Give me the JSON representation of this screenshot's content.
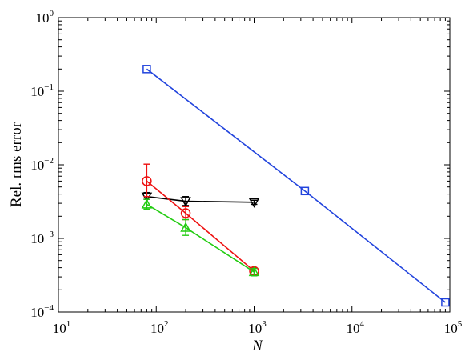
{
  "chart_data": {
    "type": "scatter",
    "title": "",
    "xlabel": "N",
    "ylabel": "Rel. rms error",
    "xscale": "log",
    "yscale": "log",
    "xlim": [
      10,
      100000
    ],
    "ylim": [
      0.0001,
      1
    ],
    "grid": false,
    "x_ticks": [
      {
        "base": "10",
        "exp": "1",
        "value": 10
      },
      {
        "base": "10",
        "exp": "2",
        "value": 100
      },
      {
        "base": "10",
        "exp": "3",
        "value": 1000
      },
      {
        "base": "10",
        "exp": "4",
        "value": 10000
      },
      {
        "base": "10",
        "exp": "5",
        "value": 100000
      }
    ],
    "y_ticks": [
      {
        "base": "10",
        "exp": "0",
        "value": 1
      },
      {
        "base": "10",
        "exp": "−1",
        "value": 0.1
      },
      {
        "base": "10",
        "exp": "−2",
        "value": 0.01
      },
      {
        "base": "10",
        "exp": "−3",
        "value": 0.001
      },
      {
        "base": "10",
        "exp": "−4",
        "value": 0.0001
      }
    ],
    "series": [
      {
        "marker": "square",
        "color": "#2244dd",
        "x": [
          80,
          3300,
          90000
        ],
        "y": [
          0.2,
          0.0044,
          0.000135
        ],
        "err_low": [
          null,
          null,
          null
        ],
        "err_high": [
          null,
          null,
          null
        ]
      },
      {
        "marker": "triangle-down",
        "color": "#000000",
        "x": [
          80,
          200,
          1000
        ],
        "y": [
          0.0037,
          0.0032,
          0.0031
        ],
        "err_low": [
          0.0034,
          0.0028,
          0.0029
        ],
        "err_high": [
          0.0042,
          0.0037,
          0.0033
        ]
      },
      {
        "marker": "circle",
        "color": "#ee1111",
        "x": [
          80,
          200,
          1000
        ],
        "y": [
          0.006,
          0.0022,
          0.00036
        ],
        "err_low": [
          0.0037,
          0.0018,
          0.00032
        ],
        "err_high": [
          0.0102,
          0.0027,
          0.0004
        ]
      },
      {
        "marker": "triangle-up",
        "color": "#22cc11",
        "x": [
          80,
          200,
          1000
        ],
        "y": [
          0.0029,
          0.0014,
          0.00035
        ],
        "err_low": [
          0.0025,
          0.0011,
          0.00031
        ],
        "err_high": [
          0.0034,
          0.0018,
          0.00039
        ]
      }
    ]
  }
}
